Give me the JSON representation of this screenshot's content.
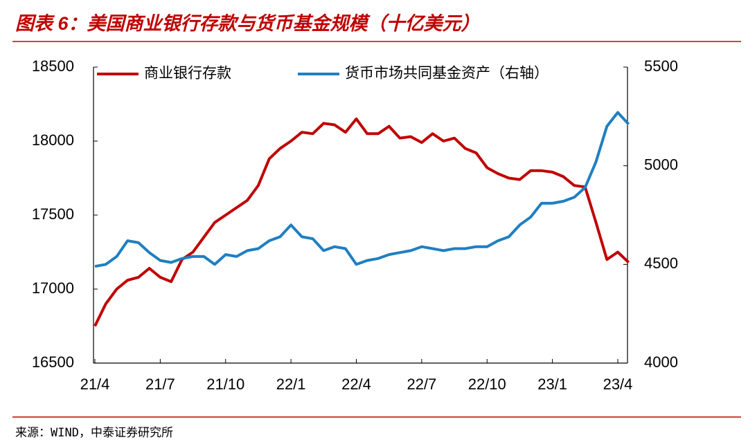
{
  "chart_data": {
    "type": "line",
    "title": "图表 6：美国商业银行存款与货币基金规模（十亿美元）",
    "source": "来源：WIND，中泰证券研究所",
    "categories": [
      "21/4",
      null,
      null,
      null,
      null,
      null,
      "21/7",
      null,
      null,
      null,
      null,
      null,
      "21/10",
      null,
      null,
      null,
      null,
      null,
      "22/1",
      null,
      null,
      null,
      null,
      null,
      "22/4",
      null,
      null,
      null,
      null,
      null,
      "22/7",
      null,
      null,
      null,
      null,
      null,
      "22/10",
      null,
      null,
      null,
      null,
      null,
      "23/1",
      null,
      null,
      null,
      null,
      null,
      "23/4",
      null
    ],
    "series": [
      {
        "name": "商业银行存款",
        "color": "#c00000",
        "axis": "y",
        "values": [
          16750,
          16900,
          17000,
          17060,
          17080,
          17140,
          17080,
          17050,
          17200,
          17250,
          17350,
          17450,
          17500,
          17550,
          17600,
          17700,
          17880,
          17950,
          18000,
          18060,
          18050,
          18120,
          18110,
          18060,
          18150,
          18050,
          18050,
          18100,
          18020,
          18030,
          17990,
          18050,
          18000,
          18020,
          17950,
          17920,
          17820,
          17780,
          17750,
          17740,
          17800,
          17800,
          17790,
          17760,
          17700,
          17690,
          17450,
          17200,
          17250,
          17180
        ]
      },
      {
        "name": "货币市场共同基金资产（右轴）",
        "color": "#1f7fc1",
        "axis": "y2",
        "values": [
          4490,
          4500,
          4540,
          4620,
          4610,
          4560,
          4520,
          4510,
          4530,
          4540,
          4540,
          4500,
          4550,
          4540,
          4570,
          4580,
          4620,
          4640,
          4700,
          4640,
          4630,
          4570,
          4590,
          4580,
          4500,
          4520,
          4530,
          4550,
          4560,
          4570,
          4590,
          4580,
          4570,
          4580,
          4580,
          4590,
          4590,
          4620,
          4640,
          4700,
          4740,
          4810,
          4810,
          4820,
          4840,
          4890,
          5020,
          5200,
          5270,
          5210
        ]
      }
    ],
    "ylim": [
      16500,
      18500
    ],
    "yticks": [
      16500,
      17000,
      17500,
      18000,
      18500
    ],
    "y2lim": [
      4000,
      5500
    ],
    "y2ticks": [
      4000,
      4500,
      5000,
      5500
    ],
    "legend": "top"
  }
}
